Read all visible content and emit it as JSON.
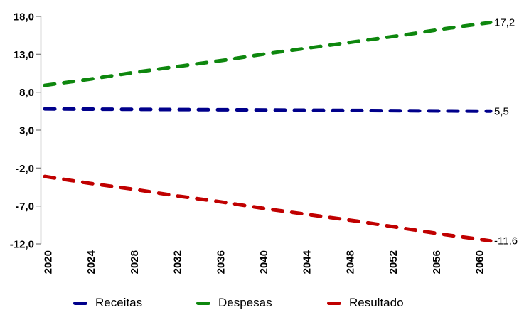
{
  "chart_data": {
    "type": "line",
    "title": "",
    "xlabel": "",
    "ylabel": "",
    "grid": false,
    "line_style": "dashed",
    "legend_position": "bottom",
    "axis_color": "#7f7f7f",
    "text_color": "#000000",
    "x": [
      2020,
      2024,
      2028,
      2032,
      2036,
      2040,
      2044,
      2048,
      2052,
      2056,
      2060
    ],
    "x_tick_labels": [
      "2020",
      "2024",
      "2028",
      "2032",
      "2036",
      "2040",
      "2044",
      "2048",
      "2052",
      "2056",
      "2060"
    ],
    "x_tick_rotation": -90,
    "ylim": [
      -12,
      18
    ],
    "y_ticks": [
      18,
      13,
      8,
      3,
      -2,
      -7,
      -12
    ],
    "y_tick_labels": [
      "18,0",
      "13,0",
      "8,0",
      "3,0",
      "-2,0",
      "-7,0",
      "-12,0"
    ],
    "series": [
      {
        "name": "Receitas",
        "color": "#00008B",
        "end_label": "5,5",
        "values": [
          5.8,
          5.77,
          5.74,
          5.71,
          5.68,
          5.65,
          5.62,
          5.59,
          5.56,
          5.53,
          5.5
        ]
      },
      {
        "name": "Despesas",
        "color": "#0E870E",
        "end_label": "17,2",
        "values": [
          8.9,
          9.7,
          10.6,
          11.4,
          12.2,
          13.1,
          13.9,
          14.7,
          15.5,
          16.4,
          17.2
        ]
      },
      {
        "name": "Resultado",
        "color": "#C00000",
        "end_label": "-11,6",
        "values": [
          -3.1,
          -4.0,
          -4.8,
          -5.7,
          -6.5,
          -7.4,
          -8.2,
          -9.0,
          -9.9,
          -10.8,
          -11.6
        ]
      }
    ]
  }
}
